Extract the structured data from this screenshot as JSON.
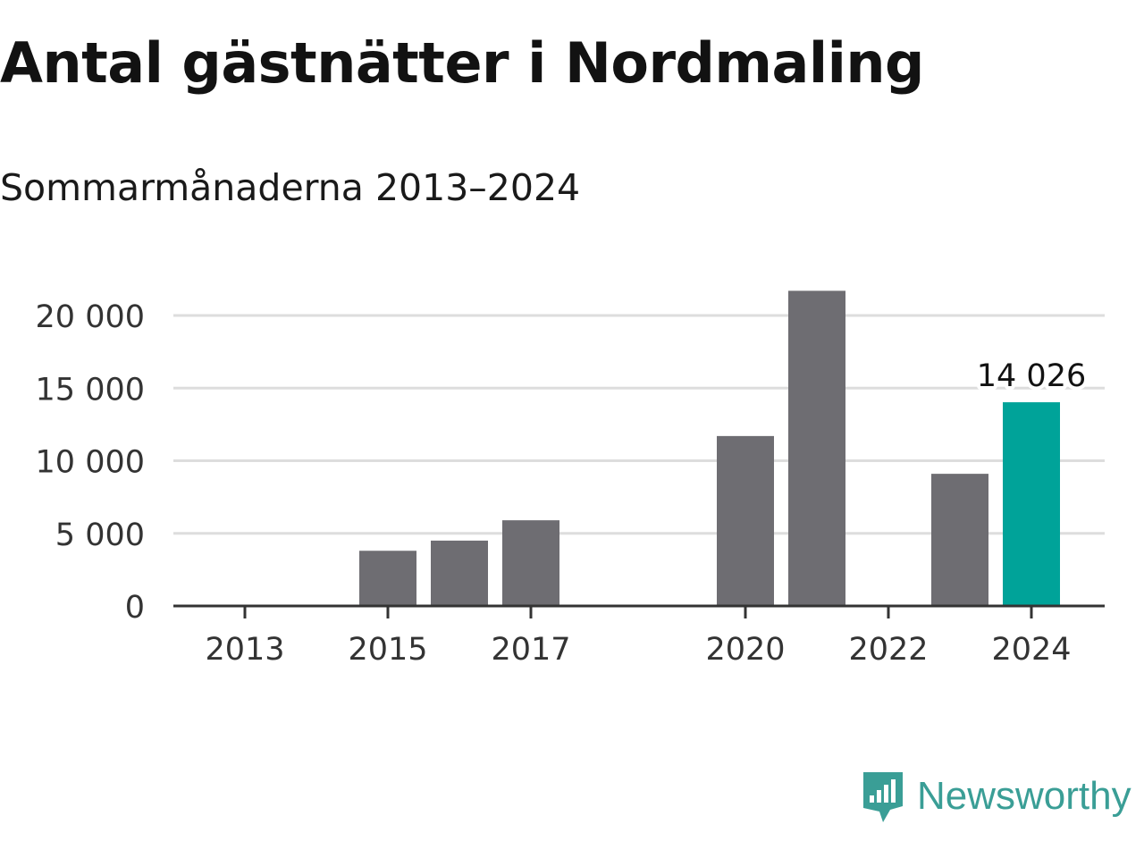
{
  "header": {
    "title": "Antal gästnätter i Nordmaling",
    "subtitle": "Sommarmånaderna 2013–2024"
  },
  "chart_data": {
    "type": "bar",
    "title": "Antal gästnätter i Nordmaling",
    "subtitle": "Sommarmånaderna 2013–2024",
    "categories": [
      "2013",
      "2014",
      "2015",
      "2016",
      "2017",
      "2018",
      "2019",
      "2020",
      "2021",
      "2022",
      "2023",
      "2024"
    ],
    "values": [
      null,
      null,
      3800,
      4500,
      5900,
      null,
      null,
      11700,
      21700,
      null,
      9100,
      14026
    ],
    "x_tick_labels": [
      "2013",
      "2015",
      "2017",
      "2020",
      "2022",
      "2024"
    ],
    "y_ticks": [
      0,
      5000,
      10000,
      15000,
      20000
    ],
    "y_tick_labels": [
      "0",
      "5 000",
      "10 000",
      "15 000",
      "20 000"
    ],
    "ylim": [
      0,
      22000
    ],
    "grid": true,
    "legend": false,
    "annotation": {
      "category": "2024",
      "label": "14 026"
    },
    "colors": {
      "bar": "#6e6d72",
      "highlight": "#00a399",
      "grid": "#dddddd",
      "axis": "#333333",
      "text": "#333333"
    },
    "highlight_category": "2024"
  },
  "brand": {
    "name": "Newsworthy",
    "icon": "newsworthy-logo-icon",
    "color": "#3a9e96"
  }
}
